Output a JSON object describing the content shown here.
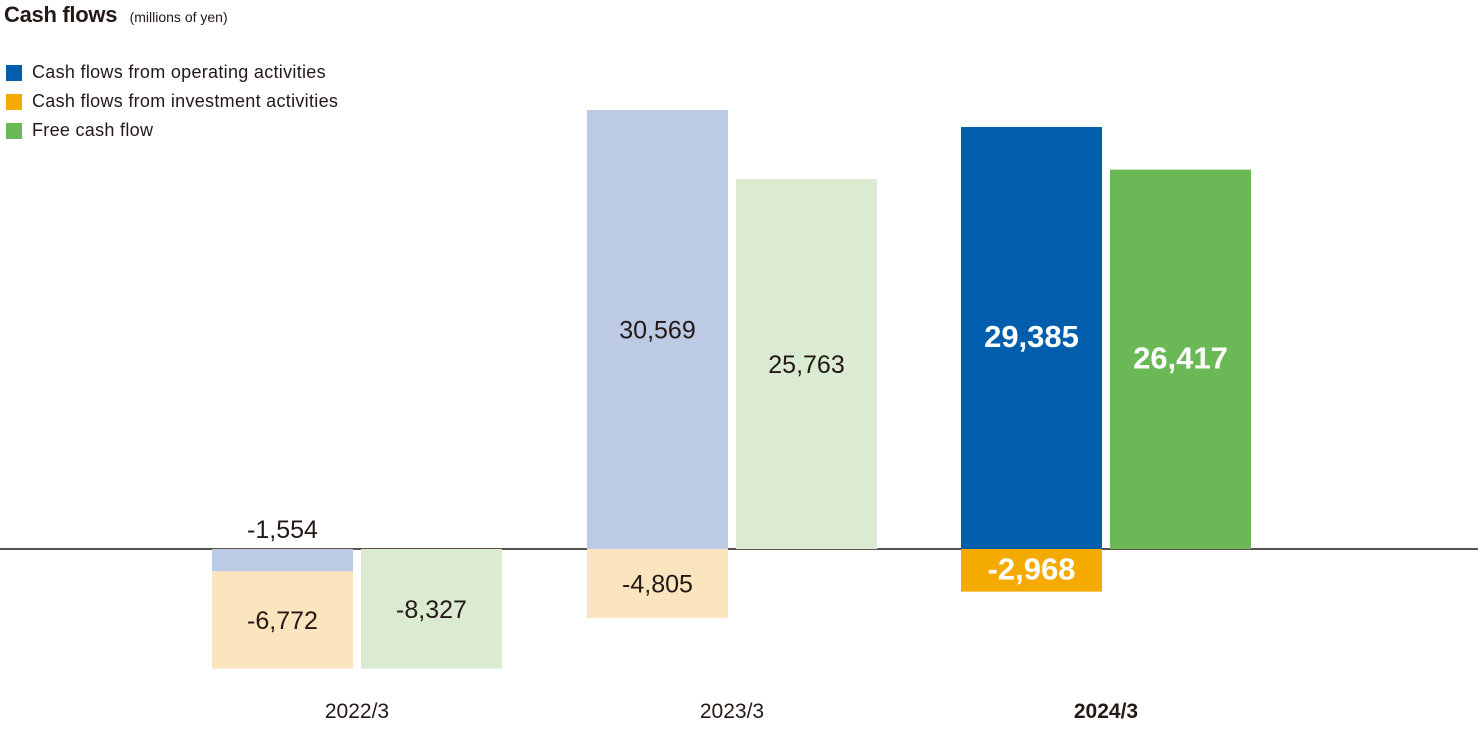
{
  "chart_data": {
    "type": "bar",
    "title": "Cash flows",
    "subtitle": "(millions of yen)",
    "xlabel": "",
    "ylabel": "",
    "categories": [
      "2022/3",
      "2023/3",
      "2024/3"
    ],
    "highlight_category": "2024/3",
    "series": [
      {
        "name": "Cash flows from operating activities",
        "values": [
          -1554,
          30569,
          29385
        ],
        "labels": [
          "-1,554",
          "30,569",
          "29,385"
        ],
        "color": "#005EAD",
        "faded_color": "#BCCAE6",
        "stack": "a"
      },
      {
        "name": "Cash flows from investment activities",
        "values": [
          -6772,
          -4805,
          -2968
        ],
        "labels": [
          "-6,772",
          "-4,805",
          "-2,968"
        ],
        "color": "#F4AA00",
        "faded_color": "#FBE5BE",
        "stack": "a"
      },
      {
        "name": "Free cash flow",
        "values": [
          -8327,
          25763,
          26417
        ],
        "labels": [
          "-8,327",
          "25,763",
          "26,417"
        ],
        "color": "#6AB956",
        "faded_color": "#DBEBD2",
        "stack": "b"
      }
    ],
    "ylim": [
      -9000,
      31000
    ],
    "grid": false,
    "legend_position": "top-left"
  }
}
